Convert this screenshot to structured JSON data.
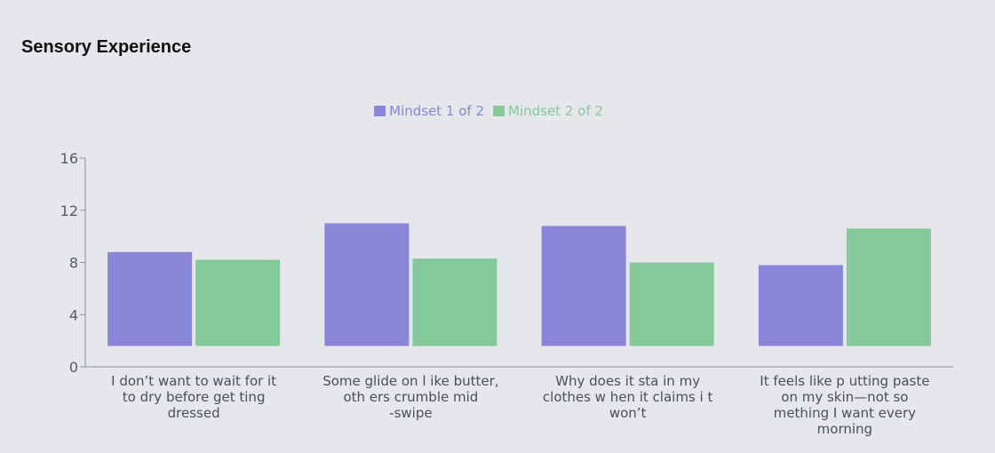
{
  "title": "Sensory Experience",
  "chart_data": {
    "type": "bar",
    "title": "Sensory Experience",
    "categories": [
      [
        "I don’t want to wait for it",
        "to dry before get ting",
        "dressed"
      ],
      [
        "Some glide on l ike butter,",
        "oth ers crumble mid",
        "-swipe"
      ],
      [
        "Why does it sta in my",
        "clothes w hen it claims i t",
        "won’t"
      ],
      [
        "It feels like p utting paste",
        "on my skin—not so",
        "mething I want every",
        "morning"
      ]
    ],
    "series": [
      {
        "name": "Mindset 1 of 2",
        "color": "#8985d9",
        "values": [
          8.8,
          11.0,
          10.8,
          7.8
        ]
      },
      {
        "name": "Mindset 2 of 2",
        "color": "#84c99a",
        "values": [
          8.2,
          8.3,
          8.0,
          10.6
        ]
      }
    ],
    "yticks": [
      0,
      4,
      8,
      12,
      16
    ],
    "ylim": [
      0,
      16
    ],
    "baseline": 1.6,
    "grid": false,
    "legend_position": "top-center"
  }
}
